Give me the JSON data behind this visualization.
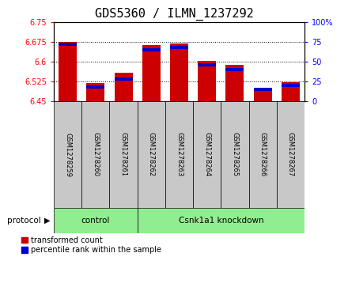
{
  "title": "GDS5360 / ILMN_1237292",
  "samples": [
    "GSM1278259",
    "GSM1278260",
    "GSM1278261",
    "GSM1278262",
    "GSM1278263",
    "GSM1278264",
    "GSM1278265",
    "GSM1278266",
    "GSM1278267"
  ],
  "transformed_counts": [
    6.676,
    6.519,
    6.558,
    6.663,
    6.67,
    6.603,
    6.588,
    6.488,
    6.523
  ],
  "percentile_ranks": [
    72,
    18,
    28,
    65,
    68,
    46,
    40,
    15,
    20
  ],
  "y_min": 6.45,
  "y_max": 6.75,
  "y_ticks": [
    6.45,
    6.525,
    6.6,
    6.675,
    6.75
  ],
  "y2_ticks": [
    0,
    25,
    50,
    75,
    100
  ],
  "bar_color": "#cc0000",
  "percentile_color": "#0000cc",
  "bg_color": "#ffffff",
  "title_fontsize": 11,
  "tick_fontsize": 7,
  "control_samples_count": 3,
  "knockdown_samples_count": 6,
  "protocol_label": "protocol",
  "control_label": "control",
  "knockdown_label": "Csnk1a1 knockdown",
  "legend_red": "transformed count",
  "legend_blue": "percentile rank within the sample",
  "group_bg": "#90ee90",
  "xtick_bg": "#c8c8c8"
}
